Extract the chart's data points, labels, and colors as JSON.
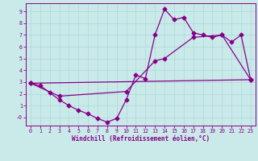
{
  "xlabel": "Windchill (Refroidissement éolien,°C)",
  "x_ticks": [
    0,
    1,
    2,
    3,
    4,
    5,
    6,
    7,
    8,
    9,
    10,
    11,
    12,
    13,
    14,
    15,
    16,
    17,
    18,
    19,
    20,
    21,
    22,
    23
  ],
  "y_ticks": [
    0,
    1,
    2,
    3,
    4,
    5,
    6,
    7,
    8,
    9
  ],
  "ylim": [
    -0.7,
    9.7
  ],
  "xlim": [
    -0.5,
    23.5
  ],
  "bg_color": "#caeaea",
  "line_color": "#880088",
  "grid_color": "#aad8d8",
  "line1_x": [
    0,
    1,
    2,
    3,
    4,
    5,
    6,
    7,
    8,
    9,
    10,
    11,
    12,
    13,
    14,
    15,
    16,
    17,
    18,
    19,
    20,
    21,
    22,
    23
  ],
  "line1_y": [
    2.9,
    2.7,
    2.1,
    1.5,
    1.0,
    0.6,
    0.3,
    -0.1,
    -0.4,
    -0.1,
    1.5,
    3.6,
    3.3,
    7.0,
    9.2,
    8.3,
    8.5,
    7.2,
    7.0,
    6.8,
    7.0,
    6.4,
    7.0,
    3.2
  ],
  "line2_x": [
    0,
    23
  ],
  "line2_y": [
    2.9,
    3.2
  ],
  "line3_x": [
    0,
    3,
    10,
    13,
    14,
    17,
    20,
    23
  ],
  "line3_y": [
    2.9,
    1.8,
    2.2,
    4.8,
    5.0,
    6.8,
    7.0,
    3.2
  ],
  "markersize": 2.5,
  "linewidth": 0.9
}
